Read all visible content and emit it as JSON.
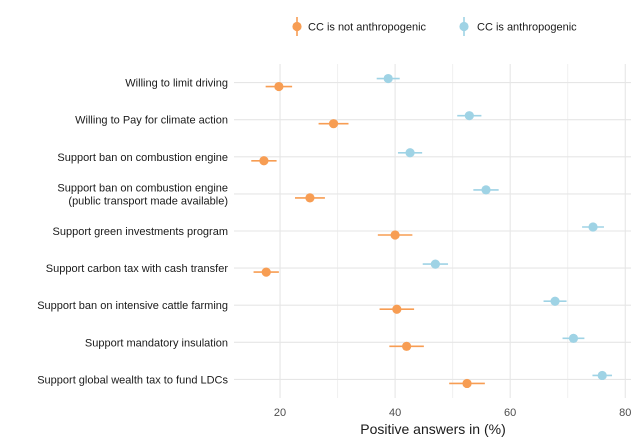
{
  "chart_data": {
    "type": "scatter",
    "subtype": "dot-with-error-bars",
    "orientation": "horizontal",
    "xlabel": "Positive answers in (%)",
    "ylabel": "",
    "xlim": [
      12,
      81
    ],
    "xticks": [
      20,
      40,
      60,
      80
    ],
    "grid": true,
    "legend_position": "top",
    "categories": [
      [
        "Willing to limit driving"
      ],
      [
        "Willing to Pay for climate action"
      ],
      [
        "Support ban on combustion engine"
      ],
      [
        "Support ban on combustion engine",
        "(public transport made available)"
      ],
      [
        "Support green investments program"
      ],
      [
        "Support carbon tax with cash transfer"
      ],
      [
        "Support ban on intensive cattle farming"
      ],
      [
        "Support mandatory insulation"
      ],
      [
        "Support global wealth tax to fund LDCs"
      ]
    ],
    "series": [
      {
        "name": "CC is not anthropogenic",
        "color": "#f79d53",
        "values": [
          19.8,
          29.3,
          17.2,
          25.2,
          40.0,
          17.6,
          40.3,
          42.0,
          52.5
        ],
        "error": [
          2.3,
          2.6,
          2.2,
          2.6,
          3.0,
          2.2,
          3.0,
          3.0,
          3.1
        ]
      },
      {
        "name": "CC is anthropogenic",
        "color": "#9fd3e5",
        "values": [
          38.8,
          52.9,
          42.6,
          55.8,
          74.4,
          47.0,
          67.8,
          71.0,
          76.0
        ],
        "error": [
          2.0,
          2.1,
          2.1,
          2.2,
          1.9,
          2.2,
          2.0,
          1.9,
          1.7
        ]
      }
    ],
    "dodge_order": [
      "CC is anthropogenic",
      "CC is not anthropogenic"
    ]
  }
}
